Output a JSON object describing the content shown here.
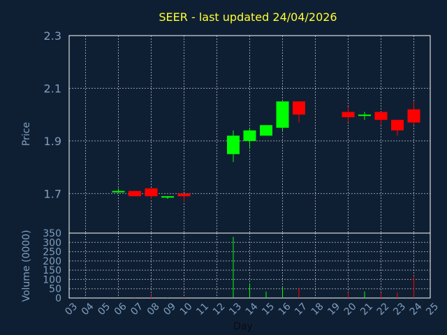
{
  "chart_data": {
    "title": "SEER - last updated 24/04/2026",
    "price_panel": {
      "type": "candlestick",
      "ylabel": "Price",
      "ylim": [
        1.55,
        2.3
      ],
      "yticks": [
        "1.7",
        "1.9",
        "2.1",
        "2.3"
      ],
      "grid": true,
      "up_color": "#00ff00",
      "down_color": "#ff0000",
      "candles": [
        {
          "day": 6,
          "open": 1.71,
          "high": 1.72,
          "low": 1.7,
          "close": 1.71
        },
        {
          "day": 7,
          "open": 1.71,
          "high": 1.71,
          "low": 1.69,
          "close": 1.69
        },
        {
          "day": 8,
          "open": 1.72,
          "high": 1.72,
          "low": 1.68,
          "close": 1.69
        },
        {
          "day": 9,
          "open": 1.69,
          "high": 1.69,
          "low": 1.68,
          "close": 1.69
        },
        {
          "day": 10,
          "open": 1.7,
          "high": 1.7,
          "low": 1.67,
          "close": 1.69
        },
        {
          "day": 13,
          "open": 1.85,
          "high": 1.94,
          "low": 1.82,
          "close": 1.92
        },
        {
          "day": 14,
          "open": 1.9,
          "high": 1.95,
          "low": 1.87,
          "close": 1.94
        },
        {
          "day": 15,
          "open": 1.92,
          "high": 1.96,
          "low": 1.92,
          "close": 1.96
        },
        {
          "day": 16,
          "open": 1.95,
          "high": 2.05,
          "low": 1.94,
          "close": 2.05
        },
        {
          "day": 17,
          "open": 2.05,
          "high": 2.05,
          "low": 1.97,
          "close": 2.0
        },
        {
          "day": 20,
          "open": 2.01,
          "high": 2.03,
          "low": 1.97,
          "close": 1.99
        },
        {
          "day": 21,
          "open": 2.0,
          "high": 2.01,
          "low": 1.98,
          "close": 2.0
        },
        {
          "day": 22,
          "open": 2.01,
          "high": 2.01,
          "low": 1.96,
          "close": 1.98
        },
        {
          "day": 23,
          "open": 1.98,
          "high": 1.98,
          "low": 1.92,
          "close": 1.94
        },
        {
          "day": 24,
          "open": 2.02,
          "high": 2.05,
          "low": 1.96,
          "close": 1.97
        }
      ]
    },
    "volume_panel": {
      "type": "bar",
      "ylabel": "Volume (0000)",
      "ylim": [
        0,
        350
      ],
      "yticks": [
        "0",
        "50",
        "100",
        "150",
        "200",
        "250",
        "300",
        "350"
      ],
      "grid": true,
      "bars": [
        {
          "day": 6,
          "value": 1,
          "color": "#00ff00"
        },
        {
          "day": 7,
          "value": 5,
          "color": "#ff0000"
        },
        {
          "day": 8,
          "value": 15,
          "color": "#ff0000"
        },
        {
          "day": 9,
          "value": 2,
          "color": "#00ff00"
        },
        {
          "day": 10,
          "value": 8,
          "color": "#ff0000"
        },
        {
          "day": 13,
          "value": 330,
          "color": "#00ff00"
        },
        {
          "day": 14,
          "value": 80,
          "color": "#00ff00"
        },
        {
          "day": 15,
          "value": 35,
          "color": "#00ff00"
        },
        {
          "day": 16,
          "value": 60,
          "color": "#00ff00"
        },
        {
          "day": 17,
          "value": 55,
          "color": "#ff0000"
        },
        {
          "day": 20,
          "value": 30,
          "color": "#ff0000"
        },
        {
          "day": 21,
          "value": 35,
          "color": "#00ff00"
        },
        {
          "day": 22,
          "value": 28,
          "color": "#ff0000"
        },
        {
          "day": 23,
          "value": 30,
          "color": "#ff0000"
        },
        {
          "day": 24,
          "value": 120,
          "color": "#ff0000"
        }
      ]
    },
    "x_axis": {
      "xlabel": "Day",
      "ticks": [
        "03",
        "04",
        "05",
        "06",
        "07",
        "08",
        "09",
        "10",
        "11",
        "12",
        "13",
        "14",
        "15",
        "16",
        "17",
        "18",
        "19",
        "20",
        "21",
        "22",
        "23",
        "24",
        "25"
      ]
    }
  }
}
